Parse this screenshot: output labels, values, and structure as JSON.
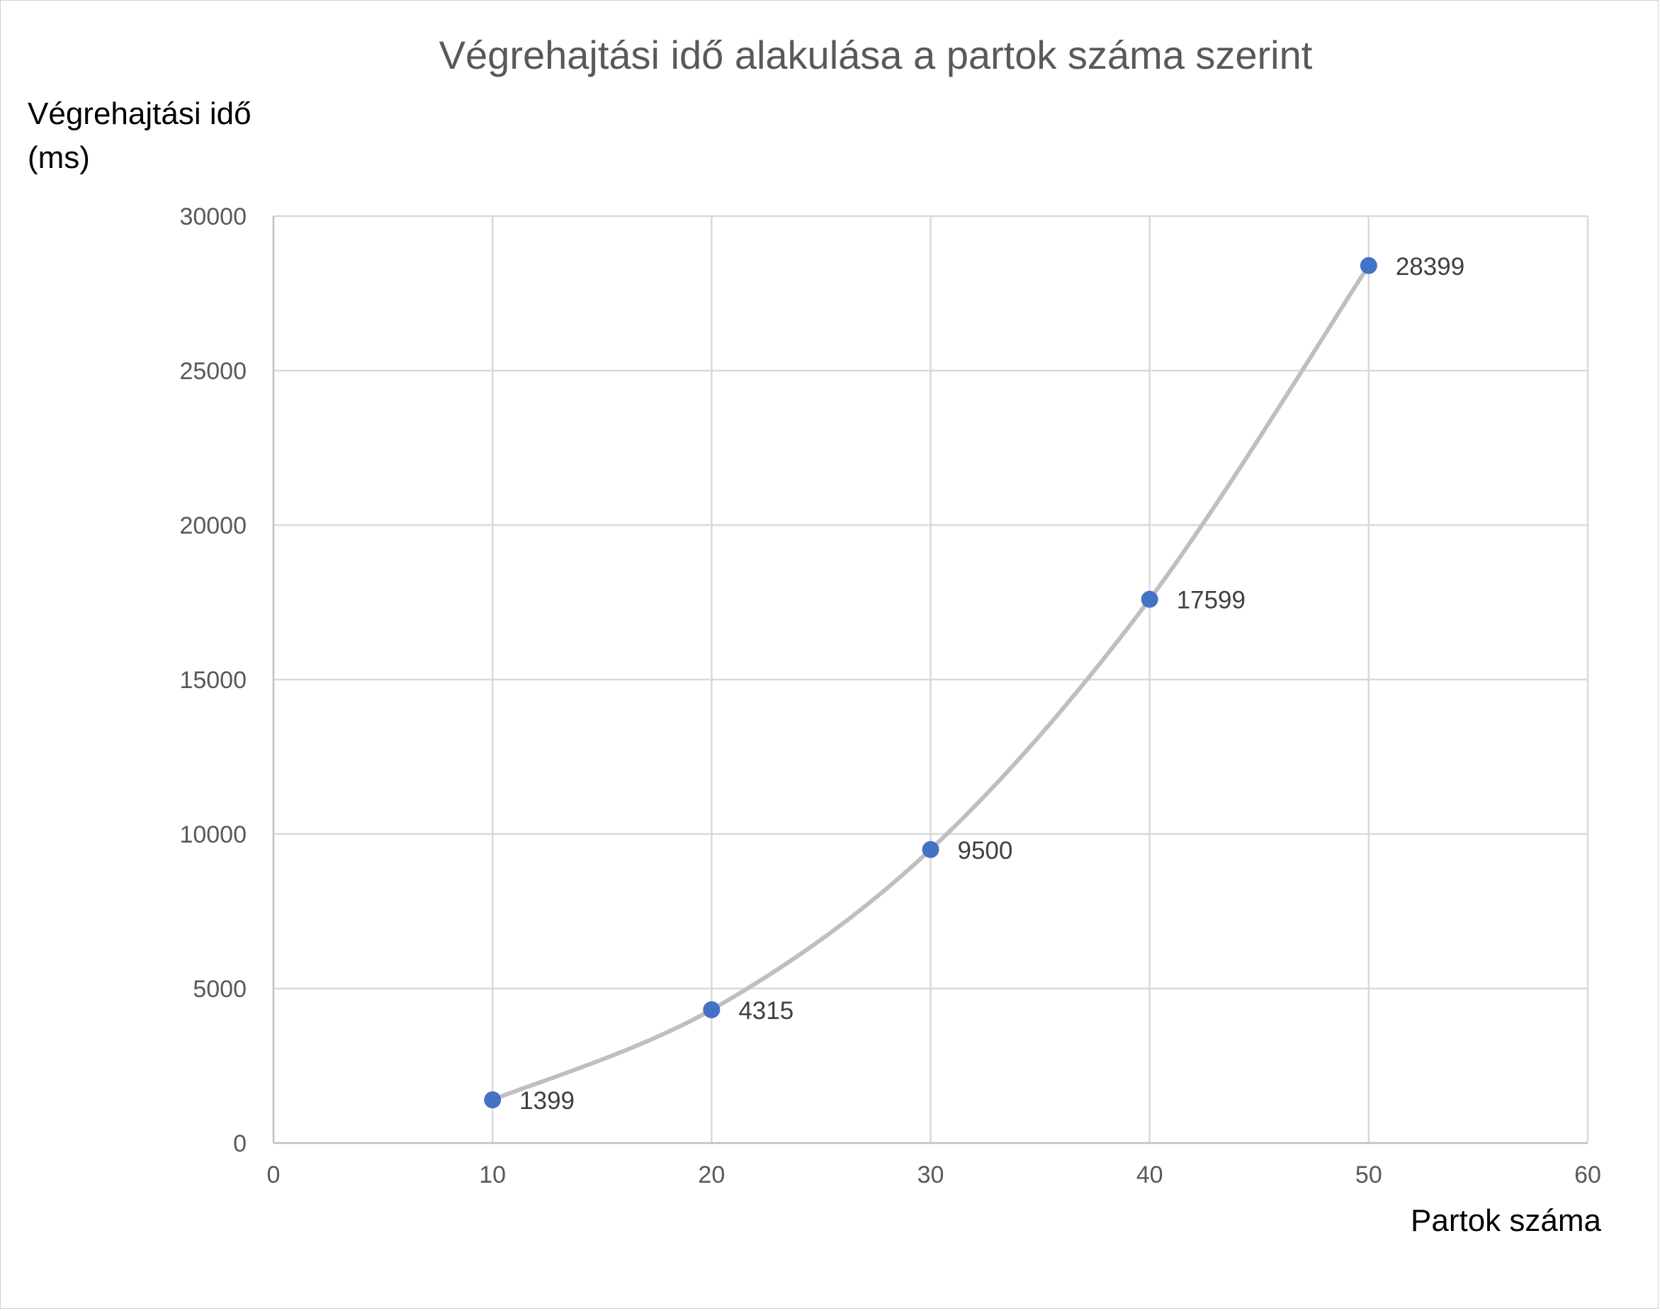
{
  "chart_data": {
    "type": "scatter",
    "title": "Végrehajtási idő alakulása a partok száma szerint",
    "ylabel_line1": "Végrehajtási idő",
    "ylabel_line2": "(ms)",
    "xlabel": "Partok száma",
    "xlim": [
      0,
      60
    ],
    "ylim": [
      0,
      30000
    ],
    "x_ticks": [
      "0",
      "10",
      "20",
      "30",
      "40",
      "50",
      "60"
    ],
    "y_ticks": [
      "0",
      "5000",
      "10000",
      "15000",
      "20000",
      "25000",
      "30000"
    ],
    "grid": true,
    "smooth_line": true,
    "series": [
      {
        "points": [
          {
            "x": 10,
            "y": 1399,
            "label": "1399"
          },
          {
            "x": 20,
            "y": 4315,
            "label": "4315"
          },
          {
            "x": 30,
            "y": 9500,
            "label": "9500"
          },
          {
            "x": 40,
            "y": 17599,
            "label": "17599"
          },
          {
            "x": 50,
            "y": 28399,
            "label": "28399"
          }
        ]
      }
    ],
    "colors": {
      "marker": "#4472C4",
      "line": "#BFBFBF",
      "grid": "#D9D9D9"
    }
  }
}
